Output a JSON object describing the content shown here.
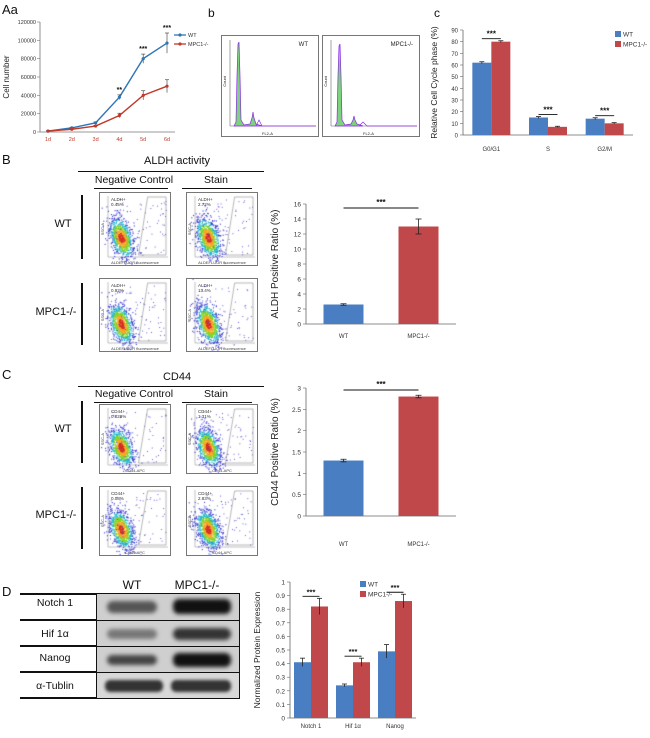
{
  "panels": {
    "A": "A",
    "a": "a",
    "b": "b",
    "c": "c",
    "B": "B",
    "C": "C",
    "D": "D"
  },
  "chart_data": [
    {
      "id": "Aa",
      "type": "line",
      "title": "",
      "xlabel": "",
      "ylabel": "Cell number",
      "categories": [
        "1d",
        "2d",
        "3d",
        "4d",
        "5d",
        "6d"
      ],
      "ylim": [
        0,
        120000
      ],
      "yticks": [
        "0",
        "20000",
        "40000",
        "60000",
        "80000",
        "100000",
        "120000"
      ],
      "series": [
        {
          "name": "WT",
          "color": "#2e75b6",
          "values": [
            1000,
            4500,
            10000,
            38000,
            80000,
            97000
          ],
          "errors": [
            300,
            600,
            1000,
            2500,
            5000,
            11000
          ]
        },
        {
          "name": "MPC1-/-",
          "color": "#c0392b",
          "values": [
            1000,
            3000,
            6500,
            18000,
            40000,
            50000
          ],
          "errors": [
            300,
            500,
            800,
            2500,
            5000,
            7000
          ]
        }
      ],
      "annotations": [
        "**",
        "***",
        "***"
      ]
    },
    {
      "id": "c",
      "type": "bar",
      "title": "",
      "xlabel": "",
      "ylabel": "Relative Cell Cycle phase (%)",
      "categories": [
        "G0/G1",
        "S",
        "G2/M"
      ],
      "ylim": [
        0,
        90
      ],
      "yticks": [
        "0",
        "10",
        "20",
        "30",
        "40",
        "50",
        "60",
        "70",
        "80",
        "90"
      ],
      "series": [
        {
          "name": "WT",
          "color": "#4a7ec2",
          "values": [
            62,
            15,
            14
          ],
          "errors": [
            0.8,
            0.8,
            0.8
          ]
        },
        {
          "name": "MPC1-/-",
          "color": "#c0474a",
          "values": [
            80,
            7,
            10
          ],
          "errors": [
            0.8,
            0.5,
            0.6
          ]
        }
      ],
      "annotations": [
        "***",
        "***",
        "***"
      ]
    },
    {
      "id": "B",
      "type": "bar",
      "title": "",
      "xlabel": "",
      "ylabel": "ALDH Positive Ratio (%)",
      "categories": [
        "WT",
        "MPC1-/-"
      ],
      "ylim": [
        0,
        16
      ],
      "yticks": [
        "0",
        "2",
        "4",
        "6",
        "8",
        "10",
        "12",
        "14",
        "16"
      ],
      "series": [
        {
          "name": "ALDH",
          "colors": [
            "#4a7ec2",
            "#c0474a"
          ],
          "values": [
            2.6,
            13.0
          ],
          "errors": [
            0.1,
            1.0
          ]
        }
      ],
      "annotations": [
        "***"
      ]
    },
    {
      "id": "C",
      "type": "bar",
      "title": "",
      "xlabel": "",
      "ylabel": "CD44 Positive Ratio (%)",
      "categories": [
        "WT",
        "MPC1-/-"
      ],
      "ylim": [
        0,
        3
      ],
      "yticks": [
        "0",
        "0.5",
        "1",
        "1.5",
        "2",
        "2.5",
        "3"
      ],
      "series": [
        {
          "name": "CD44",
          "colors": [
            "#4a7ec2",
            "#c0474a"
          ],
          "values": [
            1.3,
            2.8
          ],
          "errors": [
            0.03,
            0.03
          ]
        }
      ],
      "annotations": [
        "***"
      ]
    },
    {
      "id": "D",
      "type": "bar",
      "title": "",
      "xlabel": "",
      "ylabel": "Normalized Protein Expression",
      "categories": [
        "Notch 1",
        "Hif 1α",
        "Nanog"
      ],
      "ylim": [
        0,
        1
      ],
      "yticks": [
        "0",
        "0.1",
        "0.2",
        "0.3",
        "0.4",
        "0.5",
        "0.6",
        "0.7",
        "0.8",
        "0.9",
        "1"
      ],
      "series": [
        {
          "name": "WT",
          "color": "#4a7ec2",
          "values": [
            0.41,
            0.24,
            0.49
          ],
          "errors": [
            0.03,
            0.01,
            0.05
          ]
        },
        {
          "name": "MPC1-/-",
          "color": "#c0474a",
          "values": [
            0.82,
            0.41,
            0.86
          ],
          "errors": [
            0.06,
            0.03,
            0.05
          ]
        }
      ],
      "annotations": [
        "***",
        "***",
        "***"
      ]
    }
  ],
  "histograms": {
    "left_label": "WT",
    "right_label": "MPC1-/-",
    "xlabel": "FL2-A",
    "ylabel": "Count"
  },
  "aldh": {
    "title": "ALDH activity",
    "neg": "Negative Control",
    "stain": "Stain",
    "row_wt": "WT",
    "row_ko": "MPC1-/-",
    "gate_label": "ALDH+",
    "gate_vals": [
      "0.45%",
      "2.72%",
      "0.92%",
      "13.4%"
    ],
    "xaxis": "ALDEFLUOR fluorescence",
    "yaxis": "SSC-A"
  },
  "cd44": {
    "title": "CD44",
    "neg": "Negative Control",
    "stain": "Stain",
    "row_wt": "WT",
    "row_ko": "MPC1-/-",
    "gate_label": "CD44+",
    "gate_vals": [
      "0.029%",
      "1.31%",
      "0.08%",
      "2.83%"
    ],
    "xaxis": "CD44-APC",
    "yaxis": "SSC-A"
  },
  "blot": {
    "col_wt": "WT",
    "col_ko": "MPC1-/-",
    "rows": [
      "Notch 1",
      "Hif 1α",
      "Nanog",
      "α-Tublin"
    ]
  }
}
